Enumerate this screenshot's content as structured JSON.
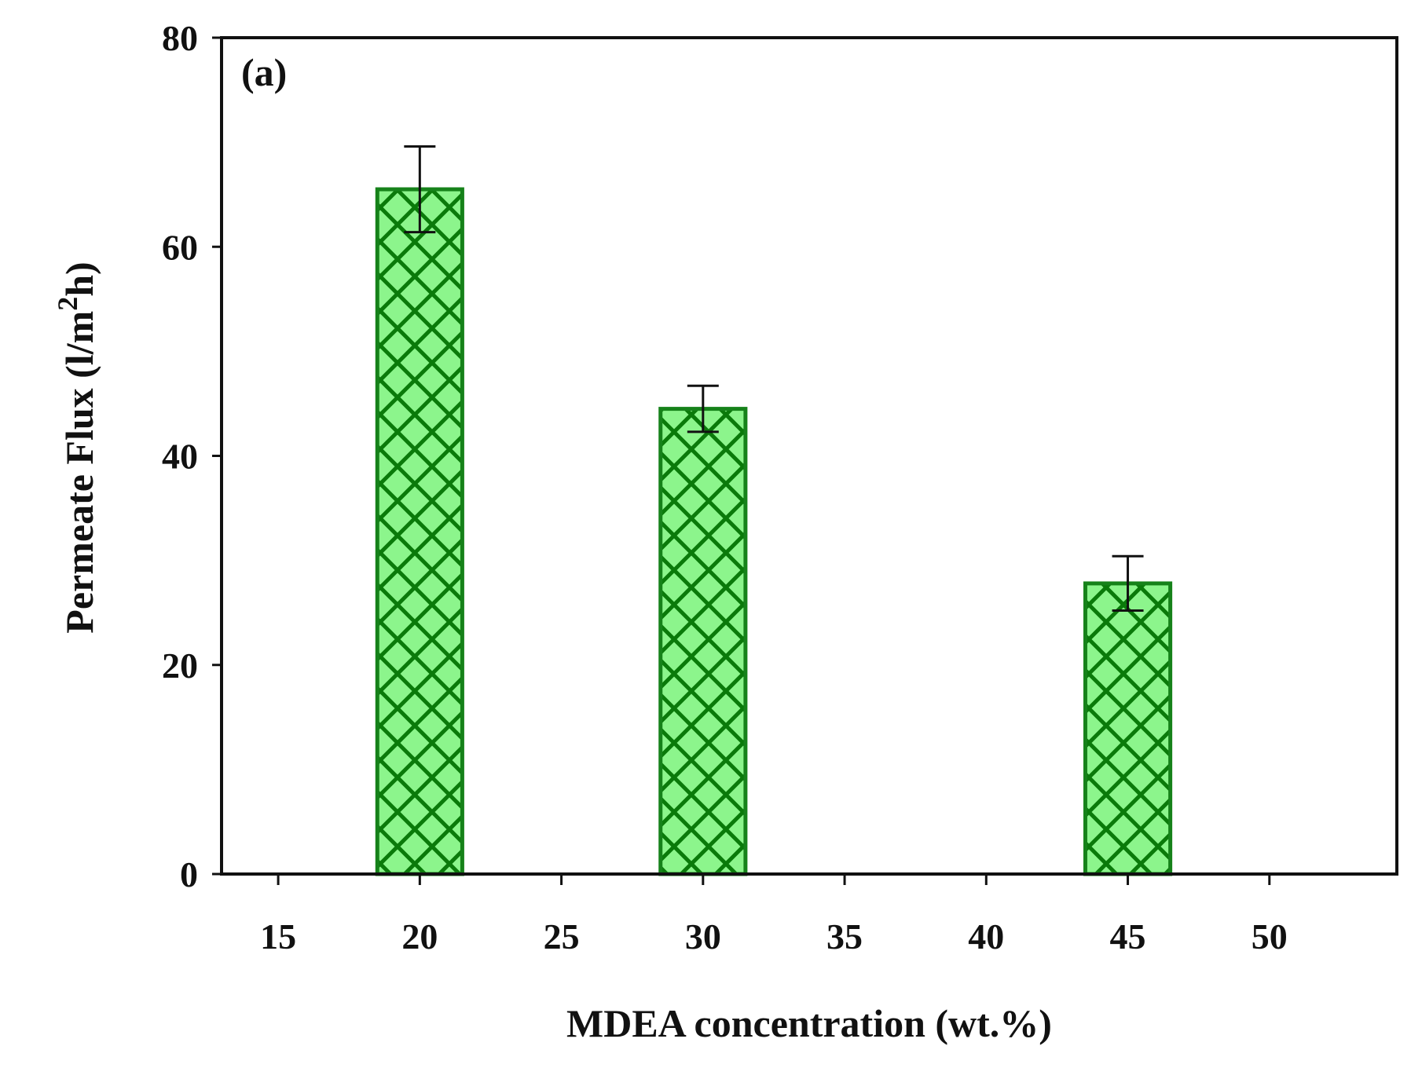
{
  "chart_data": {
    "type": "bar",
    "panel_label": "(a)",
    "xlabel": "MDEA concentration (wt.%)",
    "ylabel": {
      "base": "Permeate Flux (l/m",
      "sup": "2",
      "tail": "h)"
    },
    "xlim": [
      13,
      54.5
    ],
    "ylim": [
      0,
      80
    ],
    "xticks": [
      15,
      20,
      25,
      30,
      35,
      40,
      45,
      50
    ],
    "yticks": [
      0,
      20,
      40,
      60,
      80
    ],
    "bar_width": 3,
    "x": [
      20,
      30,
      45
    ],
    "values": [
      65.5,
      44.5,
      27.8
    ],
    "errors": [
      4.1,
      2.2,
      2.6
    ],
    "fill": "#8cf58c",
    "hatch": "#0a7a0a",
    "edge": "#16821a",
    "grid": false
  }
}
